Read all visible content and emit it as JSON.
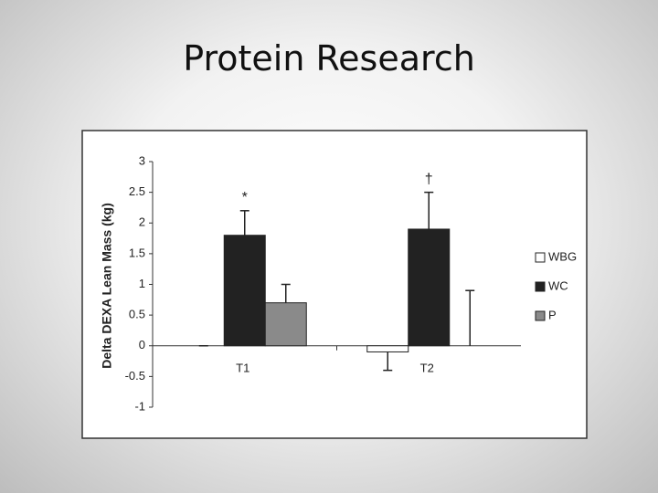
{
  "title": "Protein Research",
  "chart_data": {
    "type": "bar",
    "y_label": "Delta DEXA Lean Mass (kg)",
    "categories": [
      "T1",
      "T2"
    ],
    "series": [
      {
        "name": "WBG",
        "color": "#ffffff",
        "values": [
          0,
          -0.1
        ],
        "errors": [
          0,
          0.3
        ]
      },
      {
        "name": "WC",
        "color": "#222222",
        "values": [
          1.8,
          1.9
        ],
        "errors": [
          0.4,
          0.6
        ]
      },
      {
        "name": "P",
        "color": "#8a8a8a",
        "values": [
          0.7,
          0
        ],
        "errors": [
          0.3,
          0.9
        ]
      }
    ],
    "annotations": [
      "*",
      "†"
    ],
    "ylim": [
      -1,
      3
    ],
    "yticks": [
      -1,
      -0.5,
      0,
      0.5,
      1,
      1.5,
      2,
      2.5,
      3
    ],
    "legend": "right"
  }
}
